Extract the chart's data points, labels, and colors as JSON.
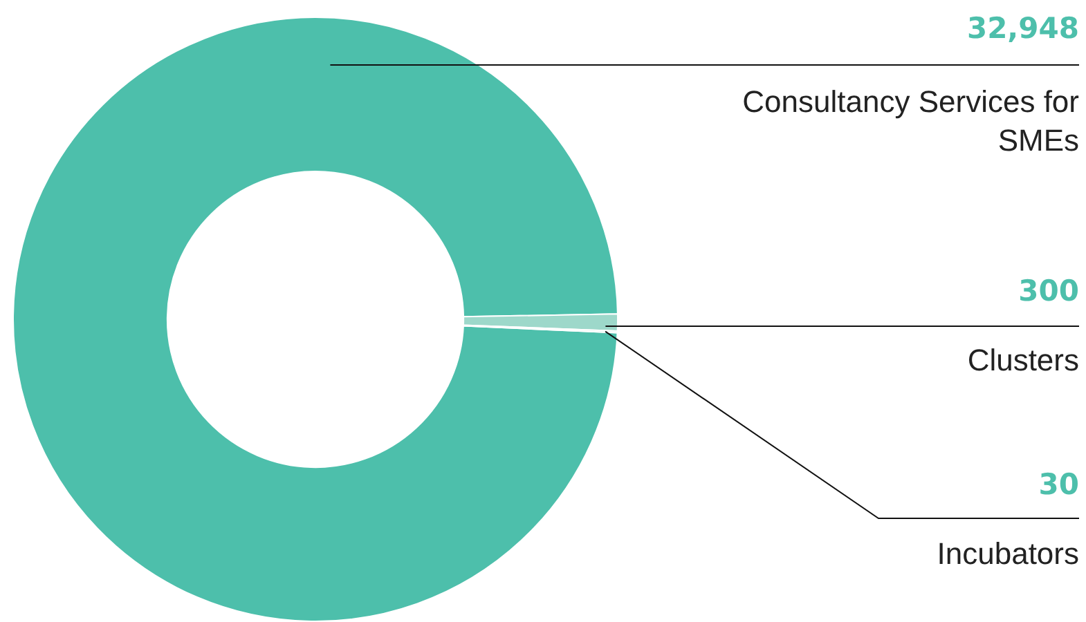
{
  "chart_data": {
    "type": "donut",
    "categories": [
      "Consultancy Services for SMEs",
      "Clusters",
      "Incubators"
    ],
    "values": [
      32948,
      300,
      30
    ],
    "colors": [
      "#4dbfab",
      "#9dd8ca",
      "#c9ebe3"
    ],
    "value_labels": [
      "32,948",
      "300",
      "30"
    ],
    "legend": false
  }
}
